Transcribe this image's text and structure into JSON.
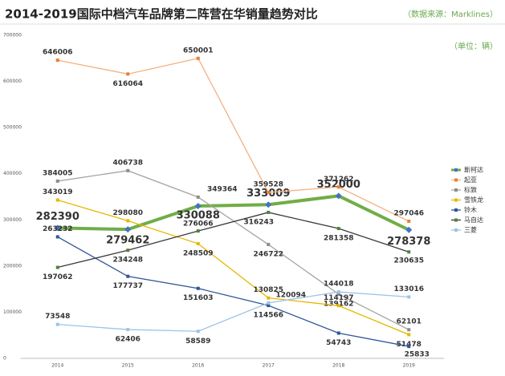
{
  "chart_data": {
    "type": "line",
    "title": "2014-2019国际中档汽车品牌第二阵营在华销量趋势对比",
    "source": "（数据来源：Marklines）",
    "unit": "（单位：辆）",
    "categories": [
      "2014",
      "2015",
      "2016",
      "2017",
      "2018",
      "2019"
    ],
    "ylim": [
      0,
      700000
    ],
    "yticks": [
      0,
      100000,
      200000,
      300000,
      400000,
      500000,
      600000,
      700000
    ],
    "grid": false,
    "legend": "right",
    "series": [
      {
        "name": "斯柯达",
        "color": "#70ad47",
        "marker_color": "#4472c4",
        "values": [
          282390,
          279462,
          330088,
          333009,
          352000,
          278378
        ]
      },
      {
        "name": "起亚",
        "color": "#f4b183",
        "marker_color": "#ed7d31",
        "values": [
          646006,
          616064,
          650001,
          359528,
          371262,
          297046
        ]
      },
      {
        "name": "标致",
        "color": "#a5a5a5",
        "marker_color": "#8c8c8c",
        "values": [
          384005,
          406738,
          349364,
          246722,
          139162,
          62101
        ]
      },
      {
        "name": "雪铁龙",
        "color": "#e6b800",
        "marker_color": "#e6b800",
        "values": [
          343019,
          298080,
          248509,
          130825,
          114197,
          51478
        ]
      },
      {
        "name": "铃木",
        "color": "#2f5597",
        "marker_color": "#2f5597",
        "values": [
          263232,
          177737,
          151603,
          114566,
          54743,
          25833
        ]
      },
      {
        "name": "马自达",
        "color": "#3a3a3a",
        "marker_color": "#548235",
        "values": [
          197062,
          234248,
          276066,
          316243,
          281358,
          230635
        ]
      },
      {
        "name": "三菱",
        "color": "#9dc3e6",
        "marker_color": "#9dc3e6",
        "values": [
          73548,
          62406,
          58589,
          120094,
          144018,
          133016
        ]
      }
    ]
  }
}
